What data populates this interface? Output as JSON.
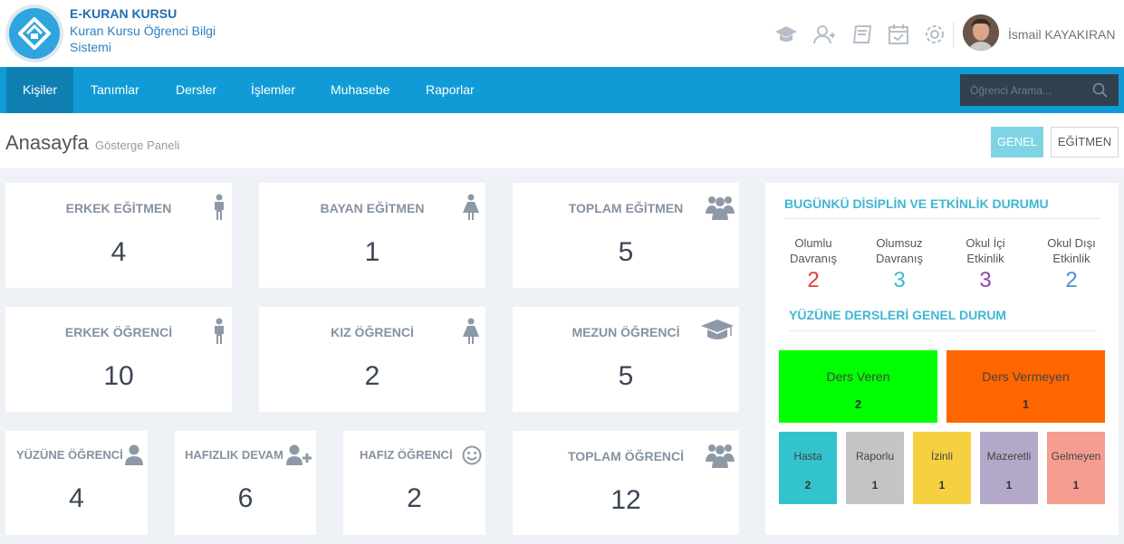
{
  "app": {
    "name": "E-KURAN KURSU",
    "subtitle": "Kuran Kursu Öğrenci Bilgi Sistemi"
  },
  "user": {
    "name": "İsmail KAYAKIRAN"
  },
  "nav": {
    "items": [
      "Kişiler",
      "Tanımlar",
      "Dersler",
      "İşlemler",
      "Muhasebe",
      "Raporlar"
    ],
    "active": "Kişiler"
  },
  "search": {
    "placeholder": "Öğrenci Arama..."
  },
  "page": {
    "title": "Anasayfa",
    "subtitle": "Gösterge Paneli",
    "btn_genel": "GENEL",
    "btn_egitmen": "EĞİTMEN"
  },
  "cards": {
    "erkek_egitmen": {
      "label": "ERKEK EĞİTMEN",
      "value": "4"
    },
    "bayan_egitmen": {
      "label": "BAYAN EĞİTMEN",
      "value": "1"
    },
    "toplam_egitmen": {
      "label": "TOPLAM EĞİTMEN",
      "value": "5"
    },
    "erkek_ogrenci": {
      "label": "ERKEK ÖĞRENCİ",
      "value": "10"
    },
    "kiz_ogrenci": {
      "label": "KIZ ÖĞRENCİ",
      "value": "2"
    },
    "mezun_ogrenci": {
      "label": "MEZUN ÖĞRENCİ",
      "value": "5"
    },
    "yuzune_ogrenci": {
      "label": "YÜZÜNE ÖĞRENCİ",
      "value": "4"
    },
    "hafizlik_devam": {
      "label": "HAFIZLIK DEVAM",
      "value": "6"
    },
    "hafiz_ogrenci": {
      "label": "HAFIZ ÖĞRENCİ",
      "value": "2"
    },
    "toplam_ogrenci": {
      "label": "TOPLAM ÖĞRENCİ",
      "value": "12"
    }
  },
  "discipline": {
    "title": "BUGÜNKÜ DİSİPLİN VE ETKİNLİK DURUMU",
    "items": [
      {
        "line1": "Olumlu",
        "line2": "Davranış",
        "value": "2",
        "color": "#e0403a"
      },
      {
        "line1": "Olumsuz",
        "line2": "Davranış",
        "value": "3",
        "color": "#3fb7d2"
      },
      {
        "line1": "Okul İçi",
        "line2": "Etkinlik",
        "value": "3",
        "color": "#8e44ad"
      },
      {
        "line1": "Okul Dışı",
        "line2": "Etkinlik",
        "value": "2",
        "color": "#4a8fd4"
      }
    ]
  },
  "yuzune": {
    "title": "YÜZÜNE DERSLERİ GENEL DURUM",
    "big": [
      {
        "label": "Ders Veren",
        "value": "2",
        "color": "#00ff00"
      },
      {
        "label": "Ders Vermeyen",
        "value": "1",
        "color": "#ff6600"
      }
    ],
    "small": [
      {
        "label": "Hasta",
        "value": "2",
        "color": "#33c3cd"
      },
      {
        "label": "Raporlu",
        "value": "1",
        "color": "#c4c4c4"
      },
      {
        "label": "İzinli",
        "value": "1",
        "color": "#f5d142"
      },
      {
        "label": "Mazeretli",
        "value": "1",
        "color": "#b3a8c9"
      },
      {
        "label": "Gelmeyen",
        "value": "1",
        "color": "#f59d91"
      }
    ]
  }
}
